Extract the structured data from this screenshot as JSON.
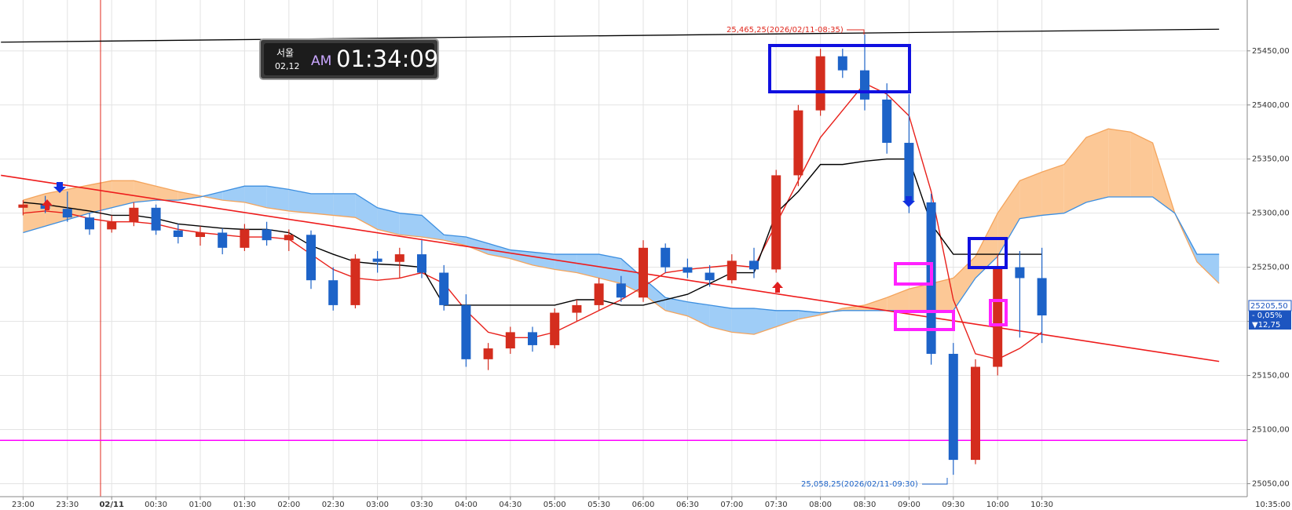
{
  "chart_data": {
    "type": "candlestick",
    "categories": [
      "23:00",
      null,
      "23:30",
      null,
      "02/11",
      null,
      "00:30",
      null,
      "01:00",
      null,
      "01:30",
      null,
      "02:00",
      null,
      "02:30",
      null,
      "03:00",
      null,
      "03:30",
      null,
      "04:00",
      null,
      "04:30",
      null,
      "05:00",
      null,
      "05:30",
      null,
      "06:00",
      null,
      "06:30",
      null,
      "07:00",
      null,
      "07:30",
      null,
      "08:00",
      null,
      "08:30",
      null,
      "09:00",
      null,
      "09:30",
      null,
      "10:00",
      null,
      "10:30",
      null,
      null,
      null,
      null,
      null,
      null,
      null,
      null
    ],
    "x_end_label": "10:35:00",
    "open": [
      25305,
      25308,
      25304,
      25296,
      25285,
      25292,
      25305,
      25284,
      25278,
      25282,
      25268,
      25285,
      25275,
      25280,
      25238,
      25215,
      25258,
      25255,
      25262,
      25245,
      25215,
      25165,
      25175,
      25190,
      25178,
      25208,
      25215,
      25235,
      25222,
      25268,
      25250,
      25245,
      25238,
      25256,
      25248,
      25335,
      25395,
      25445,
      25432,
      25405,
      25365,
      25310,
      25170,
      25072,
      25158,
      25250,
      25240,
      null,
      null,
      null,
      null,
      null,
      null,
      null,
      null
    ],
    "high": [
      25312,
      25316,
      25320,
      25300,
      25298,
      25310,
      25308,
      25290,
      25288,
      25286,
      25290,
      25292,
      25285,
      25284,
      25250,
      25262,
      25265,
      25268,
      25275,
      25252,
      25225,
      25180,
      25195,
      25195,
      25212,
      25220,
      25240,
      25242,
      25275,
      25272,
      25258,
      25252,
      25262,
      25268,
      25340,
      25400,
      25452,
      25452,
      25465.25,
      25420,
      25410,
      25318,
      25180,
      25165,
      25262,
      25265,
      25268,
      null,
      null,
      null,
      null,
      null,
      null,
      null,
      null
    ],
    "low": [
      25298,
      25300,
      25292,
      25280,
      25282,
      25288,
      25280,
      25272,
      25270,
      25262,
      25265,
      25270,
      25265,
      25230,
      25210,
      25212,
      25245,
      25240,
      25240,
      25210,
      25158,
      25155,
      25170,
      25172,
      25175,
      25200,
      25210,
      25218,
      25218,
      25245,
      25240,
      25232,
      25235,
      25240,
      25245,
      25325,
      25390,
      25425,
      25395,
      25355,
      25300,
      25160,
      25058.25,
      25068,
      25150,
      25185,
      25180,
      null,
      null,
      null,
      null,
      null,
      null,
      null,
      null
    ],
    "close": [
      25308,
      25304,
      25296,
      25285,
      25292,
      25305,
      25284,
      25278,
      25282,
      25268,
      25285,
      25275,
      25280,
      25238,
      25215,
      25258,
      25255,
      25262,
      25245,
      25215,
      25165,
      25175,
      25190,
      25178,
      25208,
      25215,
      25235,
      25222,
      25268,
      25250,
      25245,
      25238,
      25256,
      25248,
      25335,
      25395,
      25445,
      25432,
      25405,
      25365,
      25310,
      25170,
      25072,
      25158,
      25250,
      25240,
      25205.5,
      null,
      null,
      null,
      null,
      null,
      null,
      null,
      null
    ],
    "up_color": "#d42d1e",
    "down_color": "#1d63c8",
    "lines": [
      {
        "color": "#e8201a",
        "values": [
          25300,
          25302,
          25300,
          25295,
          25292,
          25292,
          25290,
          25285,
          25282,
          25280,
          25278,
          25278,
          25276,
          25262,
          25248,
          25240,
          25238,
          25240,
          25245,
          25235,
          25210,
          25190,
          25185,
          25185,
          25190,
          25200,
          25210,
          25220,
          25232,
          25245,
          25248,
          25250,
          25252,
          25250,
          25290,
          25330,
          25370,
          25395,
          25420,
          25410,
          25390,
          25320,
          25220,
          25170,
          25165,
          25175,
          25190,
          null,
          null,
          null,
          null,
          null,
          null,
          null,
          null
        ]
      },
      {
        "color": "#000000",
        "values": [
          25310,
          25308,
          25305,
          25302,
          25298,
          25298,
          25295,
          25290,
          25288,
          25286,
          25285,
          25285,
          25282,
          25270,
          25262,
          25255,
          25253,
          25252,
          25250,
          25215,
          25215,
          25215,
          25215,
          25215,
          25215,
          25220,
          25220,
          25215,
          25215,
          25220,
          25225,
          25235,
          25245,
          25245,
          25300,
          25320,
          25345,
          25345,
          25348,
          25350,
          25350,
          25290,
          25262,
          25262,
          25262,
          25262,
          25262,
          null,
          null,
          null,
          null,
          null,
          null,
          null,
          null
        ]
      }
    ],
    "cloud": {
      "span_a": [
        25312,
        25318,
        25322,
        25326,
        25330,
        25330,
        25325,
        25320,
        25316,
        25312,
        25310,
        25305,
        25302,
        25300,
        25298,
        25296,
        25285,
        25280,
        25278,
        25275,
        25270,
        25262,
        25258,
        25252,
        25248,
        25245,
        25240,
        25235,
        25225,
        25210,
        25205,
        25195,
        25190,
        25188,
        25195,
        25202,
        25206,
        25212,
        25215,
        25222,
        25230,
        25235,
        25240,
        25260,
        25300,
        25330,
        25338,
        25345,
        25370,
        25378,
        25375,
        25365,
        25300,
        25255,
        25235
      ],
      "span_b": [
        25282,
        25288,
        25294,
        25300,
        25305,
        25310,
        25312,
        25312,
        25315,
        25320,
        25325,
        25325,
        25322,
        25318,
        25318,
        25318,
        25305,
        25300,
        25298,
        25280,
        25278,
        25272,
        25266,
        25264,
        25262,
        25262,
        25262,
        25258,
        25240,
        25222,
        25218,
        25215,
        25212,
        25212,
        25210,
        25210,
        25208,
        25210,
        25210,
        25210,
        25210,
        25210,
        25210,
        25240,
        25260,
        25295,
        25298,
        25300,
        25310,
        25315,
        25315,
        25315,
        25300,
        25262,
        25262
      ],
      "bull_color": "#fcc896",
      "bear_color": "#9fcdf7",
      "a_line_color": "#f4a45c",
      "b_line_color": "#3d8fe0"
    },
    "trend_line": {
      "x": [
        -1,
        54
      ],
      "values": [
        25335,
        25163
      ],
      "color": "#ee1c1c"
    },
    "top_line": {
      "x": [
        -1,
        54
      ],
      "values": [
        25458,
        25470
      ],
      "color": "#000000"
    },
    "support_line": {
      "value": 25090,
      "color": "#ff00ff"
    },
    "ylim": [
      25038,
      25497
    ],
    "yticks": [
      {
        "value": 25050,
        "label": "25050,00"
      },
      {
        "value": 25100,
        "label": "25100,00"
      },
      {
        "value": 25150,
        "label": "25150,00"
      },
      {
        "value": 25200,
        "label": "25200,00"
      },
      {
        "value": 25250,
        "label": "25250,00"
      },
      {
        "value": 25300,
        "label": "25300,00"
      },
      {
        "value": 25350,
        "label": "25350,00"
      },
      {
        "value": 25400,
        "label": "25400,00"
      },
      {
        "value": 25450,
        "label": "25450,00"
      }
    ],
    "grid": true,
    "annotations": {
      "high": "25,465,25(2026/02/11-08:35)",
      "low": "25,058,25(2026/02/11-09:30)"
    },
    "price_tag": {
      "price": "25205,50",
      "change_pct": "- 0,05%",
      "change": "▼12,75"
    },
    "clock": {
      "city": "서울",
      "date": "02,12",
      "ampm": "AM",
      "time": "01:34:09"
    }
  }
}
